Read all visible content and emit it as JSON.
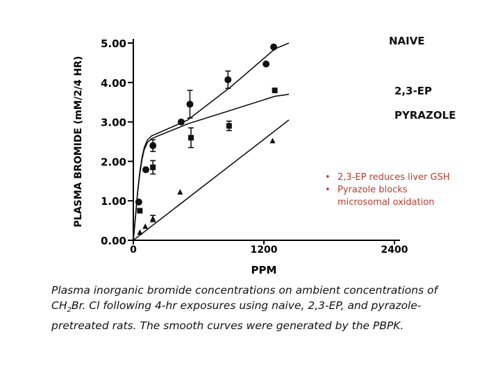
{
  "chart_data": {
    "type": "scatter",
    "xlabel": "PPM",
    "ylabel": "PLASMA BROMIDE (mM/2/4 HR)",
    "xlim": [
      0,
      2400
    ],
    "ylim": [
      0,
      5
    ],
    "x_ticks": [
      0,
      1200,
      2400
    ],
    "x_tick_labels": [
      "0",
      "1200",
      "2400"
    ],
    "y_ticks": [
      0,
      1,
      2,
      3,
      4,
      5
    ],
    "y_tick_labels": [
      "0.00",
      "1.00",
      "2.00",
      "3.00",
      "4.00",
      "5.00"
    ],
    "grid": false,
    "series": [
      {
        "name": "NAIVE",
        "marker": "circle",
        "points": [
          {
            "x": 50,
            "y": 0.97,
            "err": 0
          },
          {
            "x": 115,
            "y": 1.79,
            "err": 0
          },
          {
            "x": 180,
            "y": 2.4,
            "err": 0.15
          },
          {
            "x": 440,
            "y": 3.0,
            "err": 0
          },
          {
            "x": 520,
            "y": 3.45,
            "err": 0.35
          },
          {
            "x": 870,
            "y": 4.07,
            "err": 0.22
          },
          {
            "x": 1220,
            "y": 4.47,
            "err": 0
          },
          {
            "x": 1290,
            "y": 4.9,
            "err": 0
          }
        ],
        "curve": [
          [
            0,
            0
          ],
          [
            20,
            0.6
          ],
          [
            40,
            1.25
          ],
          [
            60,
            1.75
          ],
          [
            80,
            2.1
          ],
          [
            100,
            2.35
          ],
          [
            130,
            2.55
          ],
          [
            170,
            2.65
          ],
          [
            230,
            2.72
          ],
          [
            500,
            3.05
          ],
          [
            900,
            3.9
          ],
          [
            1300,
            4.85
          ],
          [
            1430,
            5.0
          ]
        ]
      },
      {
        "name": "2,3-EP",
        "marker": "square",
        "points": [
          {
            "x": 60,
            "y": 0.75,
            "err": 0
          },
          {
            "x": 180,
            "y": 1.85,
            "err": 0.17
          },
          {
            "x": 530,
            "y": 2.6,
            "err": 0.25
          },
          {
            "x": 880,
            "y": 2.9,
            "err": 0.12
          },
          {
            "x": 1300,
            "y": 3.8,
            "err": 0
          }
        ],
        "curve": [
          [
            0,
            0
          ],
          [
            20,
            0.6
          ],
          [
            40,
            1.22
          ],
          [
            60,
            1.7
          ],
          [
            80,
            2.05
          ],
          [
            100,
            2.3
          ],
          [
            130,
            2.48
          ],
          [
            170,
            2.58
          ],
          [
            230,
            2.65
          ],
          [
            500,
            2.95
          ],
          [
            900,
            3.3
          ],
          [
            1300,
            3.65
          ],
          [
            1430,
            3.7
          ]
        ]
      },
      {
        "name": "PYRAZOLE",
        "marker": "triangle",
        "points": [
          {
            "x": 60,
            "y": 0.2,
            "err": 0
          },
          {
            "x": 110,
            "y": 0.35,
            "err": 0
          },
          {
            "x": 180,
            "y": 0.55,
            "err": 0.08
          },
          {
            "x": 430,
            "y": 1.22,
            "err": 0
          },
          {
            "x": 1280,
            "y": 2.52,
            "err": 0
          }
        ],
        "curve": [
          [
            0,
            0
          ],
          [
            1430,
            3.05
          ]
        ]
      }
    ],
    "annotations": [
      {
        "bullet": "•",
        "text": "2,3-EP reduces liver GSH"
      },
      {
        "bullet": "•",
        "text": "Pyrazole blocks",
        "continuation": "microsomal oxidation"
      }
    ]
  },
  "caption": {
    "part1": "Plasma inorganic bromide concentrations on ambient concentrations of CH",
    "sub": "2",
    "part2": "Br. Cl following 4-hr exposures using naive, 2,3-EP, and pyrazole-pretreated rats.  The smooth curves were generated by the PBPK."
  }
}
